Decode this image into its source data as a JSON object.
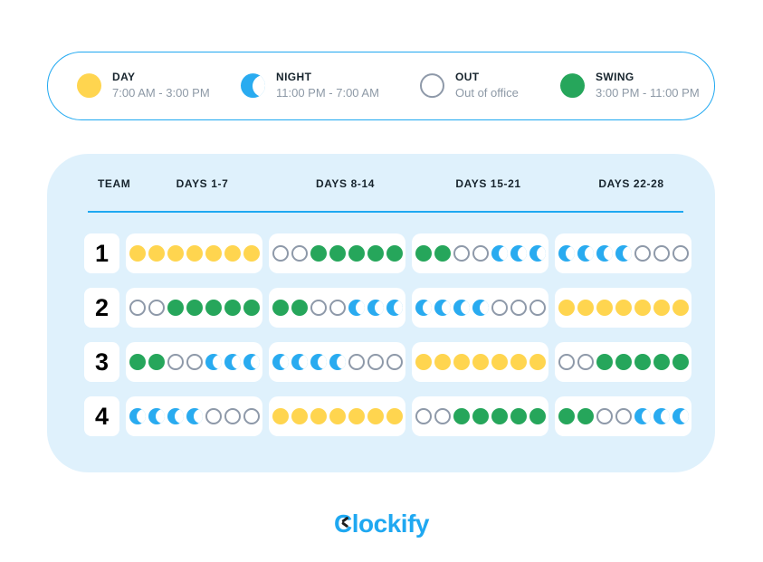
{
  "colors": {
    "accent_blue": "#1FA8F1",
    "panel_bg": "#DFF1FC",
    "day_yellow": "#FFD54F",
    "night_blue": "#29ABF0",
    "swing_green": "#26A65B",
    "out_border": "#8E99A9"
  },
  "legend": {
    "items": [
      {
        "id": "day",
        "icon": "day-circle-icon",
        "label": "DAY",
        "time": "7:00 AM - 3:00 PM"
      },
      {
        "id": "night",
        "icon": "night-crescent-icon",
        "label": "NIGHT",
        "time": "11:00 PM - 7:00 AM"
      },
      {
        "id": "out",
        "icon": "out-circle-icon",
        "label": "OUT",
        "time": "Out of office"
      },
      {
        "id": "swing",
        "icon": "swing-circle-icon",
        "label": "SWING",
        "time": "3:00 PM - 11:00 PM"
      }
    ]
  },
  "schedule": {
    "columns": [
      "TEAM",
      "DAYS 1-7",
      "DAYS 8-14",
      "DAYS 15-21",
      "DAYS 22-28"
    ],
    "rows": [
      {
        "team": "1",
        "periods": [
          [
            "day",
            "day",
            "day",
            "day",
            "day",
            "day",
            "day"
          ],
          [
            "out",
            "out",
            "swing",
            "swing",
            "swing",
            "swing",
            "swing"
          ],
          [
            "swing",
            "swing",
            "out",
            "out",
            "night",
            "night",
            "night"
          ],
          [
            "night",
            "night",
            "night",
            "night",
            "out",
            "out",
            "out"
          ]
        ]
      },
      {
        "team": "2",
        "periods": [
          [
            "out",
            "out",
            "swing",
            "swing",
            "swing",
            "swing",
            "swing"
          ],
          [
            "swing",
            "swing",
            "out",
            "out",
            "night",
            "night",
            "night"
          ],
          [
            "night",
            "night",
            "night",
            "night",
            "out",
            "out",
            "out"
          ],
          [
            "day",
            "day",
            "day",
            "day",
            "day",
            "day",
            "day"
          ]
        ]
      },
      {
        "team": "3",
        "periods": [
          [
            "swing",
            "swing",
            "out",
            "out",
            "night",
            "night",
            "night"
          ],
          [
            "night",
            "night",
            "night",
            "night",
            "out",
            "out",
            "out"
          ],
          [
            "day",
            "day",
            "day",
            "day",
            "day",
            "day",
            "day"
          ],
          [
            "out",
            "out",
            "swing",
            "swing",
            "swing",
            "swing",
            "swing"
          ]
        ]
      },
      {
        "team": "4",
        "periods": [
          [
            "night",
            "night",
            "night",
            "night",
            "out",
            "out",
            "out"
          ],
          [
            "day",
            "day",
            "day",
            "day",
            "day",
            "day",
            "day"
          ],
          [
            "out",
            "out",
            "swing",
            "swing",
            "swing",
            "swing",
            "swing"
          ],
          [
            "swing",
            "swing",
            "out",
            "out",
            "night",
            "night",
            "night"
          ]
        ]
      }
    ]
  },
  "footer": {
    "logo_text": "Clockify"
  }
}
